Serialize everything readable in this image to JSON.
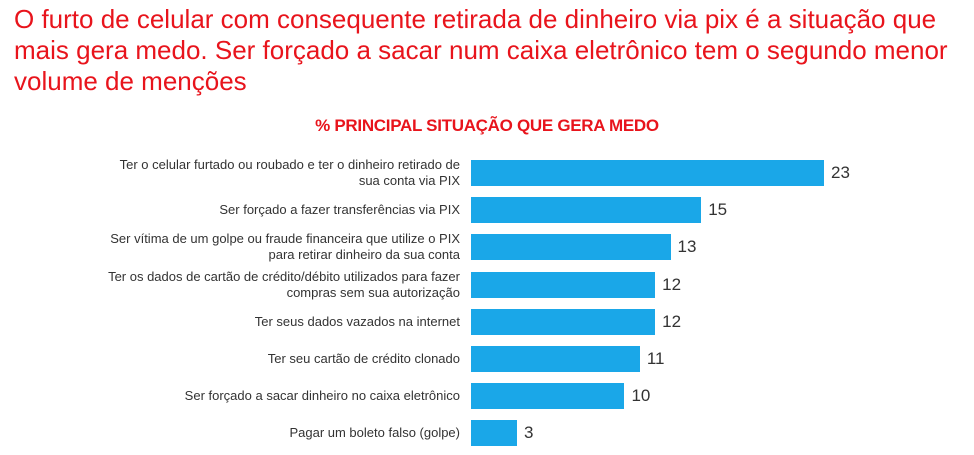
{
  "headline": "O furto de celular com consequente retirada de dinheiro via pix é a situação que mais gera medo. Ser forçado a sacar num caixa eletrônico tem o segundo menor volume de menções",
  "colors": {
    "headline": "#e8141c",
    "bar": "#1aa7e8",
    "text": "#333333"
  },
  "chart_data": {
    "type": "bar",
    "orientation": "horizontal",
    "title": "% PRINCIPAL SITUAÇÃO QUE GERA MEDO",
    "categories": [
      "Ter o celular furtado ou roubado e ter o dinheiro retirado de sua conta via PIX",
      "Ser forçado a fazer transferências via PIX",
      "Ser vítima de um golpe ou fraude financeira que utilize o PIX para retirar dinheiro da sua conta",
      "Ter os dados de cartão de crédito/débito utilizados para fazer compras sem sua autorização",
      "Ter seus dados vazados na internet",
      "Ter seu cartão de crédito clonado",
      "Ser forçado a sacar dinheiro no caixa eletrônico",
      "Pagar um boleto falso (golpe)"
    ],
    "values": [
      23,
      15,
      13,
      12,
      12,
      11,
      10,
      3
    ],
    "xlim": [
      0,
      23
    ],
    "grid": false,
    "legend": "none"
  }
}
